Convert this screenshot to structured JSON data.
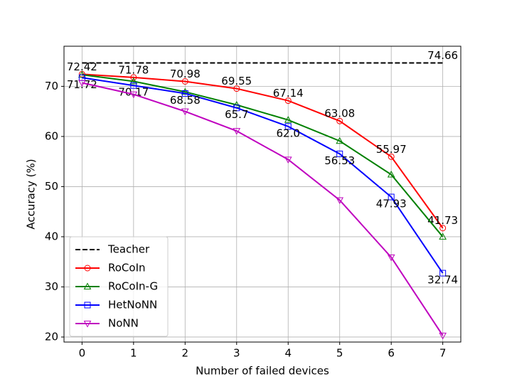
{
  "chart_data": {
    "type": "line",
    "x_label": "Number of failed devices",
    "y_label": "Accuracy (%)",
    "xlim": [
      -0.35,
      7.35
    ],
    "xticks": [
      0,
      1,
      2,
      3,
      4,
      5,
      6,
      7
    ],
    "ylim": [
      19,
      78
    ],
    "yticks": [
      20,
      30,
      40,
      50,
      60,
      70
    ],
    "grid": true,
    "legend": "lower left",
    "series": [
      {
        "name": "Teacher",
        "color": "#000000",
        "dash": true,
        "x": [
          0,
          7
        ],
        "values": [
          74.66,
          74.66
        ],
        "value_labels": [
          null,
          "74.66"
        ],
        "label_position": "above"
      },
      {
        "name": "RoCoIn",
        "color": "#ff0000",
        "marker": "circle",
        "x": [
          0,
          1,
          2,
          3,
          4,
          5,
          6,
          7
        ],
        "values": [
          72.42,
          71.78,
          70.98,
          69.55,
          67.14,
          63.08,
          55.97,
          41.73
        ],
        "value_labels": [
          "72.42",
          "71.78",
          "70.98",
          "69.55",
          "67.14",
          "63.08",
          "55.97",
          "41.73"
        ],
        "label_position": "above"
      },
      {
        "name": "RoCoIn-G",
        "color": "#008000",
        "marker": "triangle-up",
        "x": [
          0,
          1,
          2,
          3,
          4,
          5,
          6,
          7
        ],
        "values": [
          72.3,
          71.0,
          68.9,
          66.3,
          63.3,
          59.1,
          52.4,
          40.0
        ]
      },
      {
        "name": "HetNoNN",
        "color": "#0000ff",
        "marker": "square",
        "x": [
          0,
          1,
          2,
          3,
          4,
          5,
          6,
          7
        ],
        "values": [
          71.72,
          70.17,
          68.58,
          65.7,
          62.0,
          56.53,
          47.93,
          32.74
        ],
        "value_labels": [
          "71.72",
          "70.17",
          "68.58",
          "65.7",
          "62.0",
          "56.53",
          "47.93",
          "32.74"
        ],
        "label_position": "below"
      },
      {
        "name": "NoNN",
        "color": "#bf00bf",
        "marker": "triangle-down",
        "x": [
          0,
          1,
          2,
          3,
          4,
          5,
          6,
          7
        ],
        "values": [
          70.7,
          68.4,
          65.0,
          61.1,
          55.4,
          47.3,
          35.9,
          20.3
        ]
      }
    ]
  }
}
